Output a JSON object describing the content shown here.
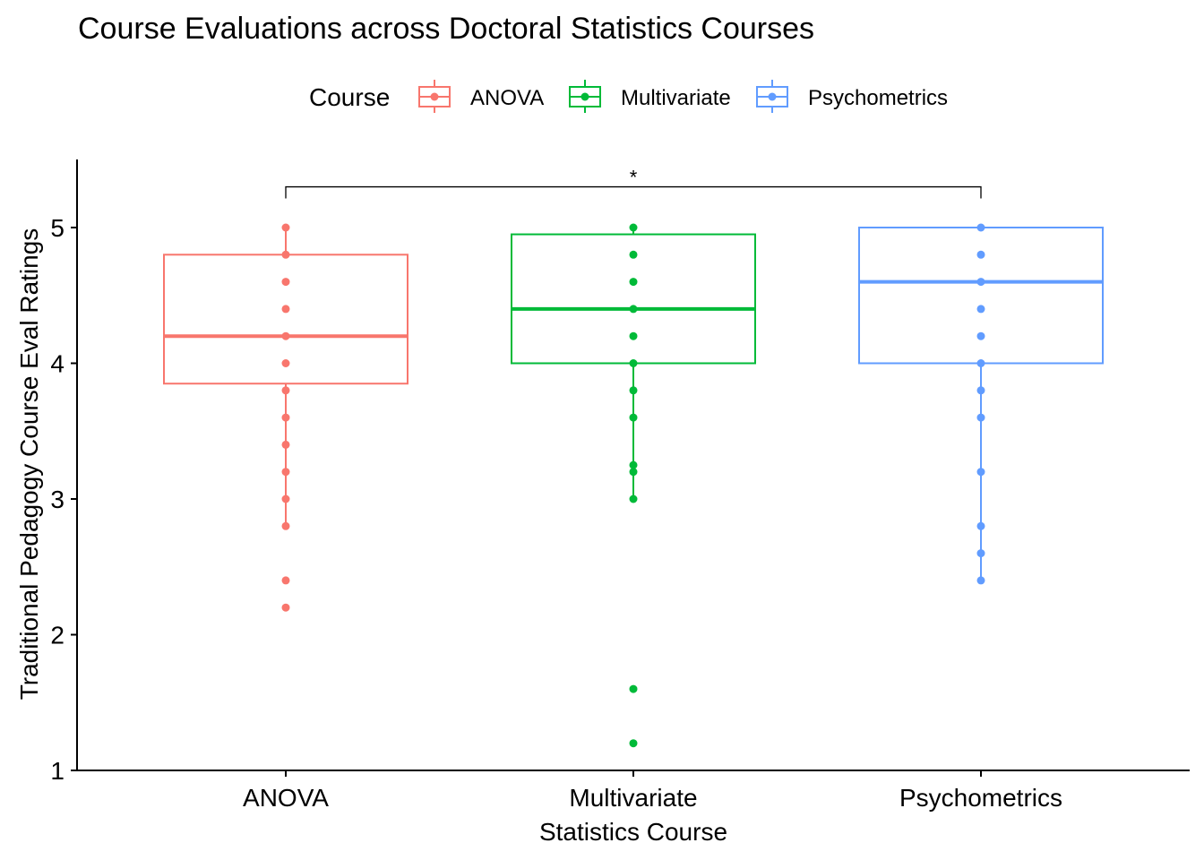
{
  "chart_data": {
    "type": "box",
    "title": "Course Evaluations across Doctoral Statistics Courses",
    "xlabel": "Statistics Course",
    "ylabel": "Traditional Pedagogy Course Eval Ratings",
    "ylim": [
      1,
      5.5
    ],
    "yticks": [
      1,
      2,
      3,
      4,
      5
    ],
    "legend": {
      "title": "Course",
      "position": "top"
    },
    "categories": [
      "ANOVA",
      "Multivariate",
      "Psychometrics"
    ],
    "series": [
      {
        "name": "ANOVA",
        "color": "#F8766D",
        "whisker_low": 2.8,
        "q1": 3.85,
        "median": 4.2,
        "q3": 4.8,
        "whisker_high": 5.0,
        "points": [
          2.2,
          2.4,
          2.8,
          3.0,
          3.2,
          3.4,
          3.6,
          3.8,
          4.0,
          4.2,
          4.4,
          4.6,
          4.8,
          5.0
        ]
      },
      {
        "name": "Multivariate",
        "color": "#00BA38",
        "whisker_low": 3.0,
        "q1": 4.0,
        "median": 4.4,
        "q3": 4.95,
        "whisker_high": 5.0,
        "points": [
          1.2,
          1.6,
          3.0,
          3.2,
          3.25,
          3.6,
          3.8,
          4.0,
          4.2,
          4.4,
          4.6,
          4.8,
          5.0
        ]
      },
      {
        "name": "Psychometrics",
        "color": "#619CFF",
        "whisker_low": 2.4,
        "q1": 4.0,
        "median": 4.6,
        "q3": 5.0,
        "whisker_high": 5.0,
        "points": [
          2.4,
          2.6,
          2.8,
          3.2,
          3.6,
          3.8,
          4.0,
          4.2,
          4.4,
          4.6,
          4.8,
          5.0
        ]
      }
    ],
    "annotations": [
      {
        "from": "ANOVA",
        "to": "Psychometrics",
        "y": 5.3,
        "label": "*"
      }
    ]
  }
}
